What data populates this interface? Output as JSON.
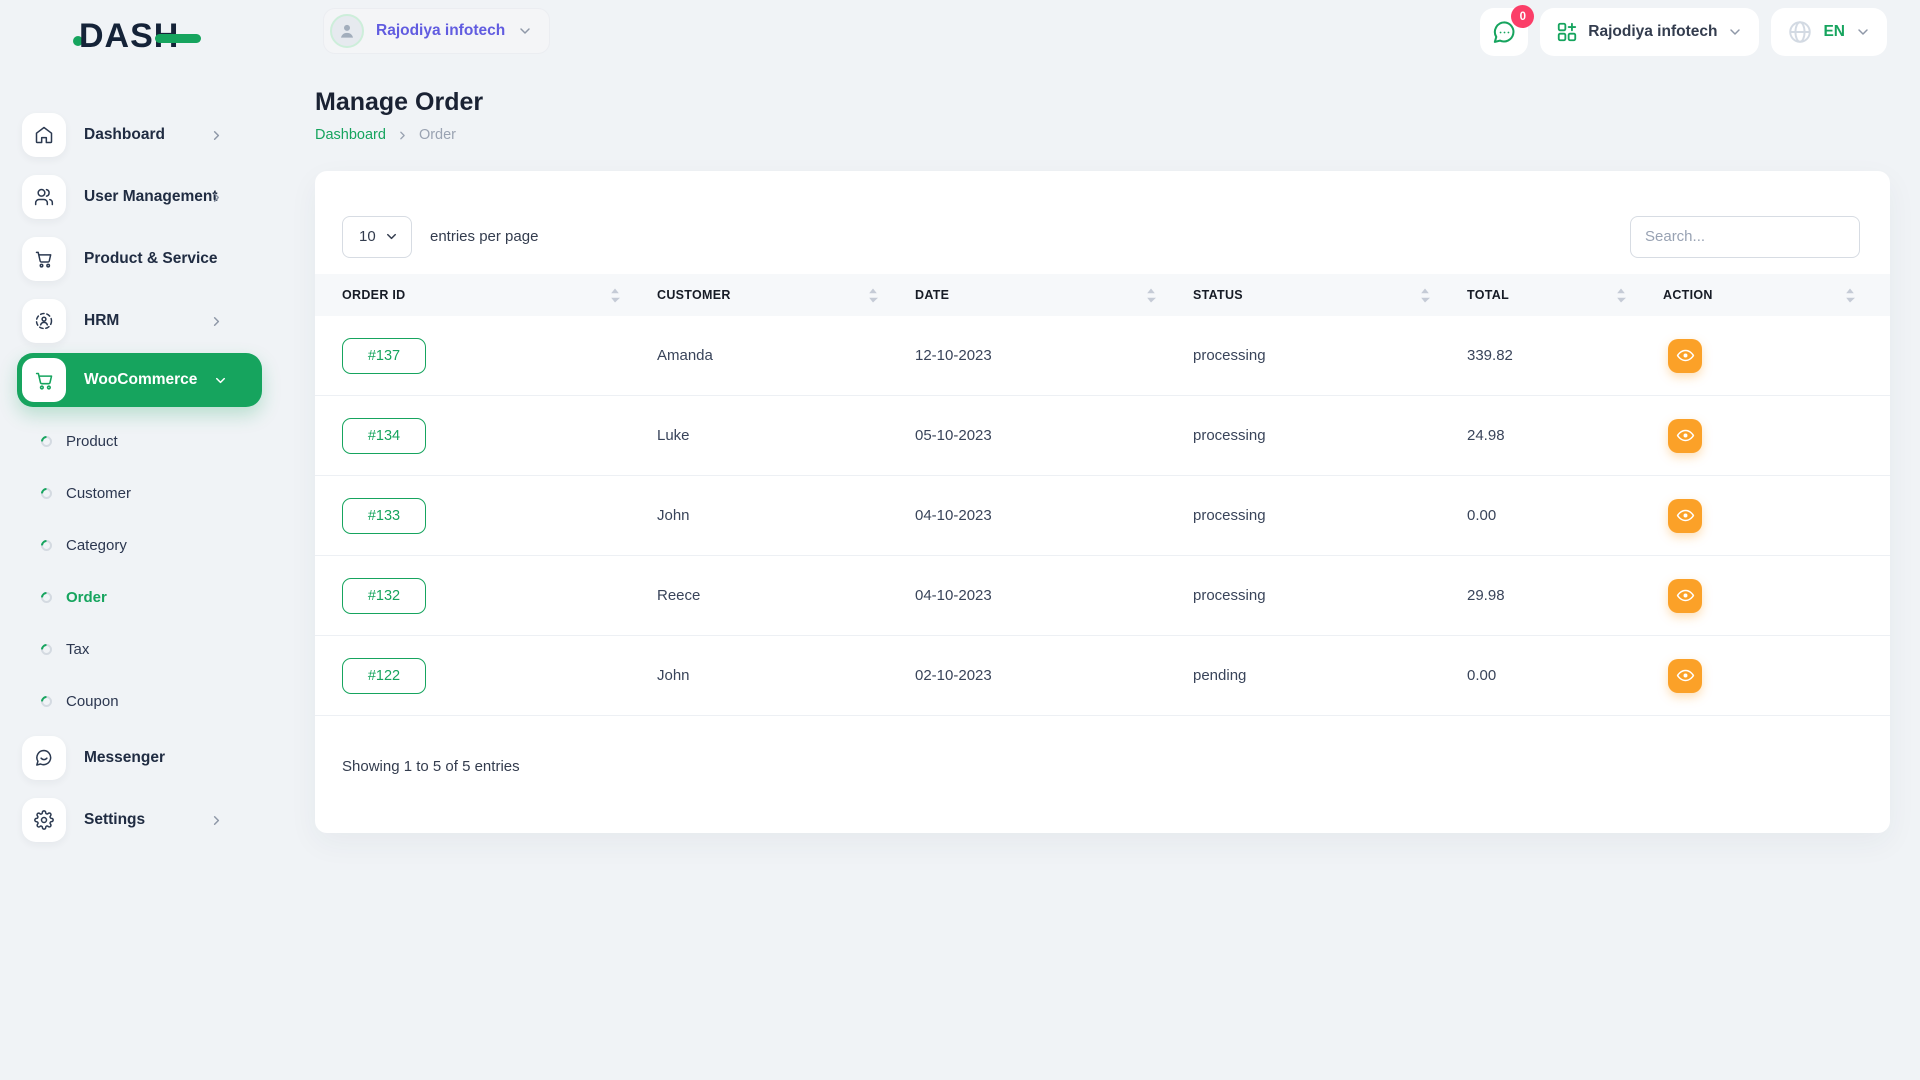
{
  "brand": {
    "name": "DASH"
  },
  "header": {
    "workspace": {
      "label": "Rajodiya infotech"
    },
    "messages": {
      "count": "0"
    },
    "company": {
      "label": "Rajodiya infotech"
    },
    "language": {
      "code": "EN"
    }
  },
  "sidebar": {
    "items": [
      {
        "id": "dashboard",
        "label": "Dashboard",
        "icon": "home-icon",
        "has_submenu": true
      },
      {
        "id": "user-management",
        "label": "User Management",
        "icon": "users-icon",
        "has_submenu": true
      },
      {
        "id": "product-service",
        "label": "Product & Service",
        "icon": "cart-icon",
        "has_submenu": false
      },
      {
        "id": "hrm",
        "label": "HRM",
        "icon": "hrm-icon",
        "has_submenu": true
      }
    ],
    "woocommerce": {
      "label": "WooCommerce",
      "icon": "cart-icon",
      "expanded": true
    },
    "submenu": [
      {
        "id": "product",
        "label": "Product",
        "active": false
      },
      {
        "id": "customer",
        "label": "Customer",
        "active": false
      },
      {
        "id": "category",
        "label": "Category",
        "active": false
      },
      {
        "id": "order",
        "label": "Order",
        "active": true
      },
      {
        "id": "tax",
        "label": "Tax",
        "active": false
      },
      {
        "id": "coupon",
        "label": "Coupon",
        "active": false
      }
    ],
    "bottom_items": [
      {
        "id": "messenger",
        "label": "Messenger",
        "icon": "chat-icon",
        "has_submenu": false
      },
      {
        "id": "settings",
        "label": "Settings",
        "icon": "gear-icon",
        "has_submenu": true
      }
    ]
  },
  "page": {
    "title": "Manage Order",
    "breadcrumb_home": "Dashboard",
    "breadcrumb_current": "Order"
  },
  "table": {
    "page_size": "10",
    "entries_label": "entries per page",
    "search_placeholder": "Search...",
    "columns": [
      "ORDER ID",
      "CUSTOMER",
      "DATE",
      "STATUS",
      "TOTAL",
      "ACTION"
    ],
    "rows": [
      {
        "order_id": "#137",
        "customer": "Amanda",
        "date": "12-10-2023",
        "status": "processing",
        "total": "339.82"
      },
      {
        "order_id": "#134",
        "customer": "Luke",
        "date": "05-10-2023",
        "status": "processing",
        "total": "24.98"
      },
      {
        "order_id": "#133",
        "customer": "John",
        "date": "04-10-2023",
        "status": "processing",
        "total": "0.00"
      },
      {
        "order_id": "#132",
        "customer": "Reece",
        "date": "04-10-2023",
        "status": "processing",
        "total": "29.98"
      },
      {
        "order_id": "#122",
        "customer": "John",
        "date": "02-10-2023",
        "status": "pending",
        "total": "0.00"
      }
    ],
    "summary": "Showing 1 to 5 of 5 entries"
  },
  "colors": {
    "primary_green": "#16a45e",
    "action_orange": "#fba128",
    "badge_pink": "#fb3e68",
    "workspace_violet": "#615CE0",
    "background": "#f0f3f6"
  }
}
